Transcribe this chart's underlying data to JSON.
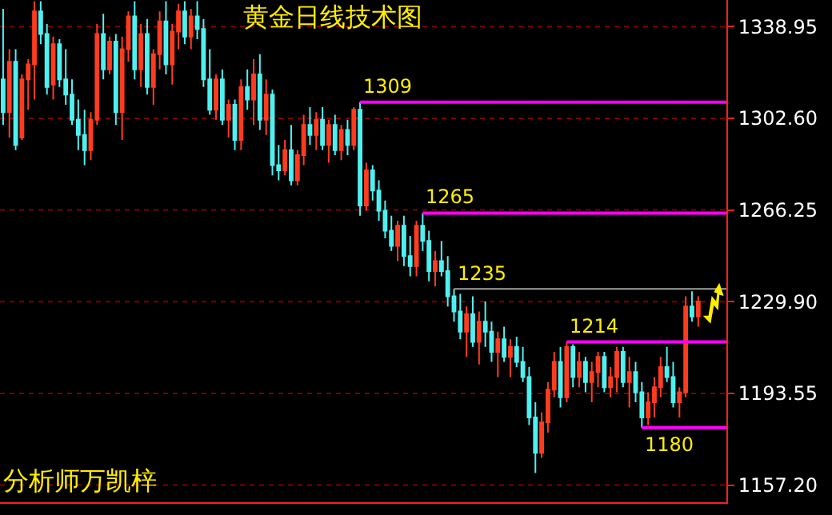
{
  "chart_data": {
    "type": "candlestick",
    "title": "黄金日线技术图",
    "annotations": [
      "分析师万凯梓"
    ],
    "colors": [
      "#50f0f0",
      "#ff3c1e",
      "#50f0f0",
      "#ff3c1e",
      "#ff3c1e",
      "#ff3c1e",
      "#50f0f0",
      "#50f0f0",
      "#ff3c1e",
      "#50f0f0",
      "#50f0f0",
      "#50f0f0",
      "#50f0f0",
      "#50f0f0",
      "#ff3c1e",
      "#ff3c1e",
      "#50f0f0",
      "#ff3c1e",
      "#50f0f0",
      "#ff3c1e",
      "#ff3c1e",
      "#50f0f0",
      "#ff3c1e",
      "#50f0f0",
      "#ff3c1e",
      "#ff3c1e",
      "#50f0f0",
      "#ff3c1e",
      "#ff3c1e",
      "#50f0f0",
      "#ff3c1e",
      "#50f0f0",
      "#50f0f0",
      "#50f0f0",
      "#ff3c1e",
      "#50f0f0",
      "#ff3c1e",
      "#50f0f0",
      "#ff3c1e",
      "#50f0f0",
      "#ff3c1e",
      "#50f0f0",
      "#ff3c1e",
      "#50f0f0",
      "#50f0f0",
      "#ff3c1e",
      "#50f0f0",
      "#ff3c1e",
      "#ff3c1e",
      "#50f0f0",
      "#ff3c1e",
      "#50f0f0",
      "#ff3c1e",
      "#50f0f0",
      "#ff3c1e",
      "#50f0f0",
      "#ff3c1e",
      "#50f0f0",
      "#ff3c1e",
      "#50f0f0",
      "#50f0f0",
      "#50f0f0",
      "#50f0f0",
      "#ff3c1e",
      "#50f0f0",
      "#50f0f0",
      "#ff3c1e",
      "#50f0f0",
      "#50f0f0",
      "#ff3c1e",
      "#50f0f0",
      "#50f0f0",
      "#50f0f0",
      "#50f0f0",
      "#ff3c1e",
      "#50f0f0",
      "#ff3c1e",
      "#50f0f0",
      "#50f0f0",
      "#ff3c1e",
      "#50f0f0",
      "#ff3c1e",
      "#50f0f0",
      "#50f0f0",
      "#50f0f0",
      "#50f0f0",
      "#ff3c1e",
      "#ff3c1e",
      "#ff3c1e",
      "#50f0f0",
      "#ff3c1e",
      "#50f0f0",
      "#ff3c1e",
      "#50f0f0",
      "#ff3c1e",
      "#ff3c1e",
      "#50f0f0",
      "#ff3c1e",
      "#ff3c1e",
      "#50f0f0",
      "#ff3c1e",
      "#50f0f0",
      "#50f0f0",
      "#ff3c1e",
      "#ff3c1e",
      "#ff3c1e",
      "#50f0f0",
      "#50f0f0",
      "#ff3c1e",
      "#ff3c1e",
      "#50f0f0",
      "#ff3c1e",
      null,
      null,
      null,
      null
    ],
    "categories": [
      null,
      null,
      null,
      null,
      null,
      null,
      null,
      null,
      null,
      null,
      null,
      null,
      null,
      null,
      null,
      null,
      null,
      null,
      null,
      null,
      null,
      null,
      null,
      null,
      null,
      null,
      null,
      null,
      null,
      null,
      null,
      null,
      null,
      null,
      null,
      null,
      null,
      null,
      null,
      null,
      null,
      null,
      null,
      null,
      null,
      null,
      null,
      null,
      null,
      null,
      null,
      null,
      null,
      null,
      null,
      null,
      null,
      null,
      null,
      null,
      null,
      null,
      null,
      null,
      null,
      null,
      null,
      null,
      null,
      null,
      null,
      null,
      null,
      null,
      null,
      null,
      null,
      null,
      null,
      null,
      null,
      null,
      null,
      null,
      null,
      null,
      null,
      null,
      null,
      null,
      null,
      null,
      null,
      null,
      null,
      null,
      null,
      null,
      null,
      null,
      null,
      null,
      null,
      null,
      null,
      null,
      null,
      null,
      null,
      null,
      null,
      null,
      null,
      null,
      null,
      null
    ],
    "ohlc": [
      [
        1318,
        1346,
        1300,
        1305
      ],
      [
        1305,
        1330,
        1295,
        1325
      ],
      [
        1325,
        1330,
        1290,
        1292
      ],
      [
        1295,
        1320,
        1294,
        1318
      ],
      [
        1318,
        1326,
        1306,
        1324
      ],
      [
        1324,
        1349,
        1310,
        1345
      ],
      [
        1345,
        1349,
        1332,
        1336
      ],
      [
        1336,
        1340,
        1312,
        1315
      ],
      [
        1316,
        1335,
        1310,
        1332
      ],
      [
        1332,
        1334,
        1315,
        1318
      ],
      [
        1318,
        1330,
        1308,
        1312
      ],
      [
        1312,
        1318,
        1300,
        1302
      ],
      [
        1302,
        1310,
        1290,
        1296
      ],
      [
        1296,
        1306,
        1284,
        1290
      ],
      [
        1290,
        1305,
        1286,
        1302
      ],
      [
        1302,
        1340,
        1300,
        1336
      ],
      [
        1336,
        1344,
        1318,
        1322
      ],
      [
        1322,
        1335,
        1320,
        1333
      ],
      [
        1333,
        1336,
        1300,
        1305
      ],
      [
        1305,
        1335,
        1294,
        1330
      ],
      [
        1330,
        1345,
        1325,
        1343
      ],
      [
        1343,
        1349,
        1318,
        1322
      ],
      [
        1322,
        1340,
        1315,
        1336
      ],
      [
        1336,
        1342,
        1312,
        1315
      ],
      [
        1315,
        1330,
        1308,
        1328
      ],
      [
        1328,
        1345,
        1322,
        1341
      ],
      [
        1341,
        1349,
        1320,
        1324
      ],
      [
        1324,
        1340,
        1316,
        1337
      ],
      [
        1337,
        1348,
        1330,
        1345
      ],
      [
        1345,
        1349,
        1332,
        1335
      ],
      [
        1335,
        1346,
        1330,
        1343
      ],
      [
        1343,
        1349,
        1334,
        1338
      ],
      [
        1338,
        1342,
        1315,
        1318
      ],
      [
        1318,
        1330,
        1304,
        1306
      ],
      [
        1306,
        1320,
        1302,
        1318
      ],
      [
        1318,
        1322,
        1300,
        1302
      ],
      [
        1302,
        1310,
        1295,
        1308
      ],
      [
        1308,
        1310,
        1290,
        1294
      ],
      [
        1294,
        1318,
        1290,
        1315
      ],
      [
        1315,
        1322,
        1306,
        1310
      ],
      [
        1310,
        1326,
        1300,
        1320
      ],
      [
        1320,
        1328,
        1298,
        1302
      ],
      [
        1302,
        1318,
        1296,
        1312
      ],
      [
        1312,
        1314,
        1280,
        1284
      ],
      [
        1284,
        1292,
        1278,
        1282
      ],
      [
        1282,
        1294,
        1280,
        1290
      ],
      [
        1290,
        1300,
        1276,
        1278
      ],
      [
        1278,
        1290,
        1276,
        1288
      ],
      [
        1288,
        1304,
        1284,
        1300
      ],
      [
        1300,
        1307,
        1292,
        1296
      ],
      [
        1296,
        1305,
        1290,
        1302
      ],
      [
        1302,
        1307,
        1290,
        1292
      ],
      [
        1292,
        1302,
        1285,
        1300
      ],
      [
        1300,
        1304,
        1288,
        1290
      ],
      [
        1290,
        1300,
        1286,
        1298
      ],
      [
        1298,
        1302,
        1288,
        1292
      ],
      [
        1292,
        1307,
        1290,
        1306
      ],
      [
        1306,
        1309,
        1264,
        1268
      ],
      [
        1268,
        1285,
        1266,
        1282
      ],
      [
        1282,
        1284,
        1270,
        1274
      ],
      [
        1274,
        1278,
        1262,
        1266
      ],
      [
        1266,
        1270,
        1255,
        1258
      ],
      [
        1258,
        1264,
        1250,
        1252
      ],
      [
        1252,
        1262,
        1246,
        1260
      ],
      [
        1260,
        1264,
        1244,
        1248
      ],
      [
        1248,
        1256,
        1240,
        1244
      ],
      [
        1244,
        1262,
        1240,
        1260
      ],
      [
        1260,
        1265,
        1250,
        1254
      ],
      [
        1254,
        1258,
        1238,
        1242
      ],
      [
        1242,
        1250,
        1236,
        1246
      ],
      [
        1246,
        1254,
        1240,
        1242
      ],
      [
        1242,
        1248,
        1228,
        1232
      ],
      [
        1232,
        1235,
        1222,
        1226
      ],
      [
        1226,
        1233,
        1215,
        1218
      ],
      [
        1218,
        1228,
        1208,
        1225
      ],
      [
        1225,
        1232,
        1212,
        1214
      ],
      [
        1214,
        1226,
        1205,
        1222
      ],
      [
        1222,
        1230,
        1212,
        1218
      ],
      [
        1218,
        1222,
        1206,
        1210
      ],
      [
        1210,
        1218,
        1200,
        1215
      ],
      [
        1215,
        1220,
        1206,
        1208
      ],
      [
        1208,
        1215,
        1200,
        1212
      ],
      [
        1212,
        1216,
        1204,
        1206
      ],
      [
        1206,
        1212,
        1198,
        1200
      ],
      [
        1200,
        1204,
        1181,
        1184
      ],
      [
        1184,
        1190,
        1162,
        1170
      ],
      [
        1170,
        1186,
        1168,
        1182
      ],
      [
        1182,
        1198,
        1178,
        1195
      ],
      [
        1195,
        1210,
        1192,
        1206
      ],
      [
        1206,
        1212,
        1188,
        1192
      ],
      [
        1192,
        1214,
        1190,
        1212
      ],
      [
        1212,
        1213,
        1196,
        1200
      ],
      [
        1200,
        1210,
        1196,
        1206
      ],
      [
        1206,
        1208,
        1194,
        1198
      ],
      [
        1198,
        1206,
        1190,
        1202
      ],
      [
        1202,
        1210,
        1196,
        1208
      ],
      [
        1208,
        1210,
        1194,
        1196
      ],
      [
        1196,
        1204,
        1192,
        1200
      ],
      [
        1200,
        1212,
        1194,
        1210
      ],
      [
        1210,
        1212,
        1196,
        1198
      ],
      [
        1198,
        1208,
        1188,
        1202
      ],
      [
        1202,
        1206,
        1190,
        1194
      ],
      [
        1194,
        1198,
        1180,
        1184
      ],
      [
        1184,
        1194,
        1181,
        1190
      ],
      [
        1190,
        1200,
        1184,
        1196
      ],
      [
        1196,
        1208,
        1192,
        1204
      ],
      [
        1204,
        1212,
        1198,
        1200
      ],
      [
        1200,
        1206,
        1188,
        1190
      ],
      [
        1190,
        1196,
        1184,
        1194
      ],
      [
        1194,
        1232,
        1192,
        1228
      ],
      [
        1228,
        1234,
        1222,
        1224
      ],
      [
        1224,
        1232,
        1220,
        1230
      ],
      null,
      null,
      null,
      null
    ],
    "ylim": [
      1150.4,
      1349.5
    ],
    "yticks": [
      {
        "value": 1157.2,
        "label": "1157.20"
      },
      1193.55,
      {
        "value": 1229.9,
        "label": "1229.90"
      },
      1266.25,
      {
        "value": 1302.6,
        "label": "1302.60"
      },
      1338.95
    ],
    "grid": "y",
    "ref_lines": [
      {
        "axis": "y",
        "value": 1309,
        "label": "1309",
        "color": "#ff00ff"
      },
      {
        "axis": "y",
        "value": 1265,
        "label": "1265",
        "color": "#ff00ff"
      },
      {
        "axis": "y",
        "value": 1235,
        "label": "1235",
        "color": "#a0a0a0"
      },
      {
        "axis": "y",
        "value": 1214,
        "label": "1214",
        "color": "#ff00ff"
      },
      {
        "axis": "y",
        "value": 1180,
        "label": "1180",
        "color": "#ff00ff"
      }
    ]
  }
}
